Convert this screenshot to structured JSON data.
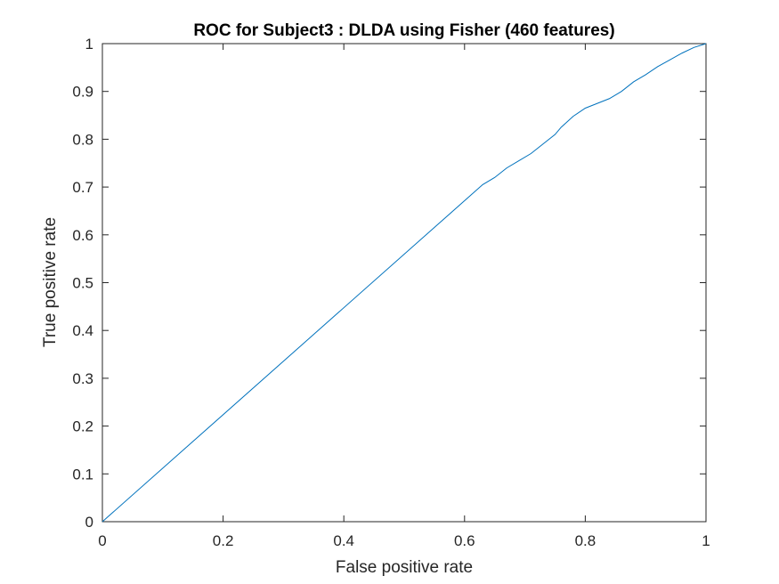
{
  "chart_data": {
    "type": "line",
    "title": "ROC for Subject3 : DLDA using Fisher (460 features)",
    "xlabel": "False positive rate",
    "ylabel": "True positive rate",
    "xlim": [
      0,
      1
    ],
    "ylim": [
      0,
      1
    ],
    "xticks": [
      0,
      0.2,
      0.4,
      0.6,
      0.8,
      1
    ],
    "xtick_labels": [
      "0",
      "0.2",
      "0.4",
      "0.6",
      "0.8",
      "1"
    ],
    "yticks": [
      0,
      0.1,
      0.2,
      0.3,
      0.4,
      0.5,
      0.6,
      0.7,
      0.8,
      0.9,
      1
    ],
    "ytick_labels": [
      "0",
      "0.1",
      "0.2",
      "0.3",
      "0.4",
      "0.5",
      "0.6",
      "0.7",
      "0.8",
      "0.9",
      "1"
    ],
    "grid": false,
    "line_color": "#0072BD",
    "series": [
      {
        "x": [
          0,
          0.63,
          0.65,
          0.67,
          0.69,
          0.71,
          0.73,
          0.75,
          0.76,
          0.78,
          0.8,
          0.82,
          0.84,
          0.86,
          0.88,
          0.9,
          0.92,
          0.94,
          0.96,
          0.98,
          1.0
        ],
        "y": [
          0,
          0.705,
          0.72,
          0.74,
          0.755,
          0.77,
          0.79,
          0.81,
          0.825,
          0.848,
          0.865,
          0.875,
          0.885,
          0.9,
          0.92,
          0.935,
          0.952,
          0.966,
          0.98,
          0.992,
          1.0
        ]
      }
    ]
  }
}
